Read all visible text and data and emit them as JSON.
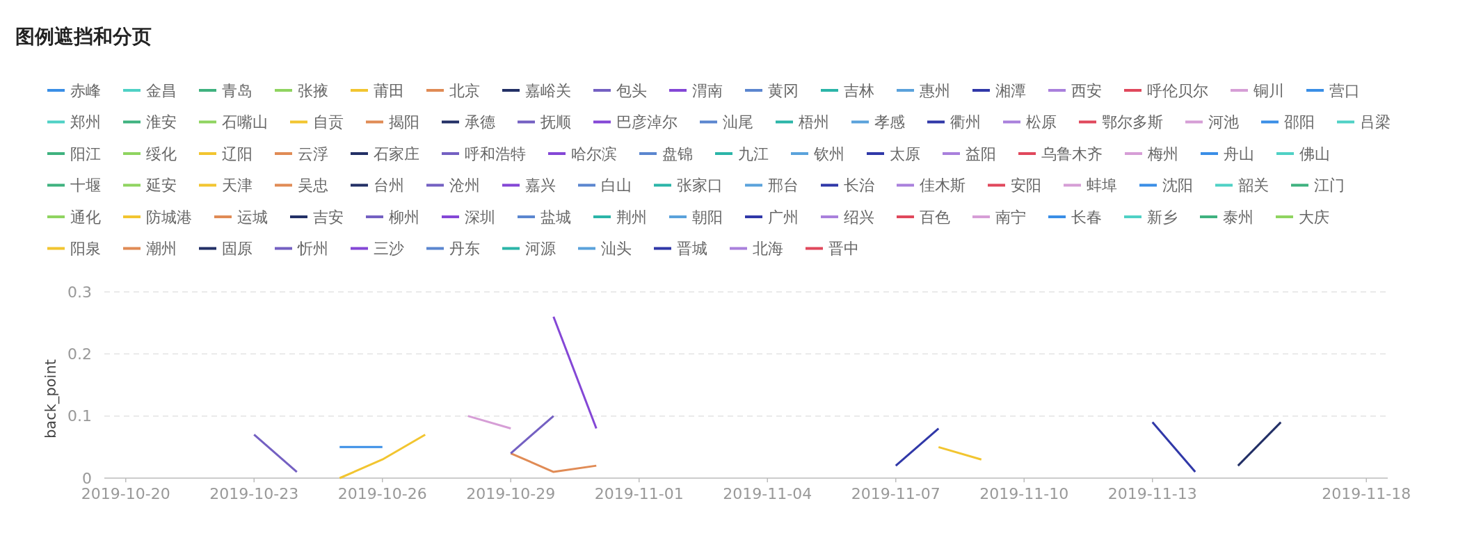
{
  "chart_data": {
    "type": "line",
    "title": "图例遮挡和分页",
    "ylabel": "back_point",
    "legend": "top",
    "grid": "y",
    "xlim": [
      "2019-10-19T12:00",
      "2019-11-18T12:00"
    ],
    "xticks": [
      "2019-10-20",
      "2019-10-23",
      "2019-10-26",
      "2019-10-29",
      "2019-11-01",
      "2019-11-04",
      "2019-11-07",
      "2019-11-10",
      "2019-11-13",
      "2019-11-18"
    ],
    "ylim": [
      0,
      0.3
    ],
    "yticks": [
      0,
      0.1,
      0.2,
      0.3
    ],
    "series": [
      {
        "name": "赤峰",
        "color": "#3a8ee6",
        "x": [
          "2019-10-25",
          "2019-10-26"
        ],
        "values": [
          0.05,
          0.05
        ]
      },
      {
        "name": "金昌",
        "color": "#4fd1c5"
      },
      {
        "name": "青岛",
        "color": "#3fb27f"
      },
      {
        "name": "张掖",
        "color": "#8fd460"
      },
      {
        "name": "莆田",
        "color": "#f2c530",
        "x": [
          "2019-10-25",
          "2019-10-26",
          "2019-10-27"
        ],
        "values": [
          0,
          0.03,
          0.07
        ]
      },
      {
        "name": "北京",
        "color": "#e08b55",
        "x": [
          "2019-10-29",
          "2019-10-30",
          "2019-10-31"
        ],
        "values": [
          0.04,
          0.01,
          0.02
        ]
      },
      {
        "name": "嘉峪关",
        "color": "#233066",
        "x": [
          "2019-11-15",
          "2019-11-16"
        ],
        "values": [
          0.02,
          0.09
        ]
      },
      {
        "name": "包头",
        "color": "#7460c2",
        "x": [
          "2019-10-23",
          "2019-10-24"
        ],
        "values": [
          0.07,
          0.01
        ]
      },
      {
        "name": "渭南",
        "color": "#8447d6",
        "x": [
          "2019-10-30",
          "2019-10-31"
        ],
        "values": [
          0.26,
          0.08
        ]
      },
      {
        "name": "黄冈",
        "color": "#5b86cf"
      },
      {
        "name": "吉林",
        "color": "#2bb5a8"
      },
      {
        "name": "惠州",
        "color": "#5aa2db"
      },
      {
        "name": "湘潭",
        "color": "#3038a8",
        "x": [
          "2019-11-07",
          "2019-11-08"
        ],
        "values": [
          0.02,
          0.08
        ]
      },
      {
        "name": "西安",
        "color": "#a980dc"
      },
      {
        "name": "呼伦贝尔",
        "color": "#e0485c"
      },
      {
        "name": "铜川",
        "color": "#d69ed6",
        "x": [
          "2019-10-28",
          "2019-10-29"
        ],
        "values": [
          0.1,
          0.08
        ]
      },
      {
        "name": "营口",
        "color": "#3a8ee6"
      },
      {
        "name": "郑州",
        "color": "#4fd1c5"
      },
      {
        "name": "淮安",
        "color": "#3fb27f"
      },
      {
        "name": "石嘴山",
        "color": "#8fd460"
      },
      {
        "name": "自贡",
        "color": "#f2c530",
        "x": [
          "2019-11-08",
          "2019-11-09"
        ],
        "values": [
          0.05,
          0.03
        ]
      },
      {
        "name": "揭阳",
        "color": "#e08b55"
      },
      {
        "name": "承德",
        "color": "#233066"
      },
      {
        "name": "抚顺",
        "color": "#7460c2",
        "x": [
          "2019-10-29",
          "2019-10-30"
        ],
        "values": [
          0.04,
          0.1
        ]
      },
      {
        "name": "巴彦淖尔",
        "color": "#8447d6"
      },
      {
        "name": "汕尾",
        "color": "#5b86cf"
      },
      {
        "name": "梧州",
        "color": "#2bb5a8"
      },
      {
        "name": "孝感",
        "color": "#5aa2db"
      },
      {
        "name": "衢州",
        "color": "#3038a8",
        "x": [
          "2019-11-13",
          "2019-11-14"
        ],
        "values": [
          0.09,
          0.01
        ]
      },
      {
        "name": "松原",
        "color": "#a980dc"
      },
      {
        "name": "鄂尔多斯",
        "color": "#e0485c"
      },
      {
        "name": "河池",
        "color": "#d69ed6"
      },
      {
        "name": "邵阳",
        "color": "#3a8ee6"
      },
      {
        "name": "吕梁",
        "color": "#4fd1c5"
      },
      {
        "name": "阳江",
        "color": "#3fb27f"
      },
      {
        "name": "绥化",
        "color": "#8fd460"
      },
      {
        "name": "辽阳",
        "color": "#f2c530"
      },
      {
        "name": "云浮",
        "color": "#e08b55"
      },
      {
        "name": "石家庄",
        "color": "#233066"
      },
      {
        "name": "呼和浩特",
        "color": "#7460c2"
      },
      {
        "name": "哈尔滨",
        "color": "#8447d6"
      },
      {
        "name": "盘锦",
        "color": "#5b86cf"
      },
      {
        "name": "九江",
        "color": "#2bb5a8"
      },
      {
        "name": "钦州",
        "color": "#5aa2db"
      },
      {
        "name": "太原",
        "color": "#3038a8"
      },
      {
        "name": "益阳",
        "color": "#a980dc"
      },
      {
        "name": "乌鲁木齐",
        "color": "#e0485c"
      },
      {
        "name": "梅州",
        "color": "#d69ed6"
      },
      {
        "name": "舟山",
        "color": "#3a8ee6"
      },
      {
        "name": "佛山",
        "color": "#4fd1c5"
      },
      {
        "name": "十堰",
        "color": "#3fb27f"
      },
      {
        "name": "延安",
        "color": "#8fd460"
      },
      {
        "name": "天津",
        "color": "#f2c530"
      },
      {
        "name": "吴忠",
        "color": "#e08b55"
      },
      {
        "name": "台州",
        "color": "#233066"
      },
      {
        "name": "沧州",
        "color": "#7460c2"
      },
      {
        "name": "嘉兴",
        "color": "#8447d6"
      },
      {
        "name": "白山",
        "color": "#5b86cf"
      },
      {
        "name": "张家口",
        "color": "#2bb5a8"
      },
      {
        "name": "邢台",
        "color": "#5aa2db"
      },
      {
        "name": "长治",
        "color": "#3038a8"
      },
      {
        "name": "佳木斯",
        "color": "#a980dc"
      },
      {
        "name": "安阳",
        "color": "#e0485c"
      },
      {
        "name": "蚌埠",
        "color": "#d69ed6"
      },
      {
        "name": "沈阳",
        "color": "#3a8ee6"
      },
      {
        "name": "韶关",
        "color": "#4fd1c5"
      },
      {
        "name": "江门",
        "color": "#3fb27f"
      },
      {
        "name": "通化",
        "color": "#8fd460"
      },
      {
        "name": "防城港",
        "color": "#f2c530"
      },
      {
        "name": "运城",
        "color": "#e08b55"
      },
      {
        "name": "吉安",
        "color": "#233066"
      },
      {
        "name": "柳州",
        "color": "#7460c2"
      },
      {
        "name": "深圳",
        "color": "#8447d6"
      },
      {
        "name": "盐城",
        "color": "#5b86cf"
      },
      {
        "name": "荆州",
        "color": "#2bb5a8"
      },
      {
        "name": "朝阳",
        "color": "#5aa2db"
      },
      {
        "name": "广州",
        "color": "#3038a8"
      },
      {
        "name": "绍兴",
        "color": "#a980dc"
      },
      {
        "name": "百色",
        "color": "#e0485c"
      },
      {
        "name": "南宁",
        "color": "#d69ed6"
      },
      {
        "name": "长春",
        "color": "#3a8ee6"
      },
      {
        "name": "新乡",
        "color": "#4fd1c5"
      },
      {
        "name": "泰州",
        "color": "#3fb27f"
      },
      {
        "name": "大庆",
        "color": "#8fd460"
      },
      {
        "name": "阳泉",
        "color": "#f2c530"
      },
      {
        "name": "潮州",
        "color": "#e08b55"
      },
      {
        "name": "固原",
        "color": "#233066"
      },
      {
        "name": "忻州",
        "color": "#7460c2"
      },
      {
        "name": "三沙",
        "color": "#8447d6"
      },
      {
        "name": "丹东",
        "color": "#5b86cf"
      },
      {
        "name": "河源",
        "color": "#2bb5a8"
      },
      {
        "name": "汕头",
        "color": "#5aa2db"
      },
      {
        "name": "晋城",
        "color": "#3038a8"
      },
      {
        "name": "北海",
        "color": "#a980dc"
      },
      {
        "name": "晋中",
        "color": "#e0485c"
      }
    ]
  }
}
